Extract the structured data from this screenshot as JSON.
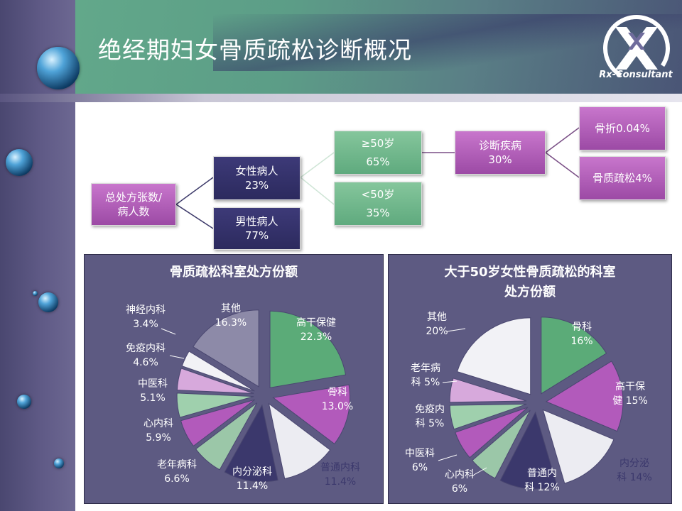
{
  "title": "绝经期妇女骨质疏松诊断概况",
  "logo": {
    "text": "Rx-Consultant"
  },
  "tree": {
    "root": {
      "line1": "总处方张数/",
      "line2": "病人数"
    },
    "female": {
      "label": "女性病人",
      "value": "23%"
    },
    "male": {
      "label": "男性病人",
      "value": "77%"
    },
    "over50": {
      "label": "≥50岁",
      "value": "65%"
    },
    "under50": {
      "label": "<50岁",
      "value": "35%"
    },
    "diagnosed": {
      "label": "诊断疾病",
      "value": "30%"
    },
    "fracture": {
      "label": "骨折0.04%"
    },
    "osteoporosis": {
      "label": "骨质疏松4%"
    }
  },
  "chart_data": [
    {
      "type": "pie",
      "title": "骨质疏松科室处方份额",
      "slices": [
        {
          "name": "高干保健",
          "value": 22.3,
          "color": "#5bab78",
          "labels": [
            "高干保健",
            "22.3%"
          ]
        },
        {
          "name": "骨科",
          "value": 13.0,
          "color": "#b25abb",
          "labels": [
            "骨科",
            "13.0%"
          ]
        },
        {
          "name": "普通内科",
          "value": 11.4,
          "color": "#ececf2",
          "labels": [
            "普通内科",
            "11.4%"
          ]
        },
        {
          "name": "内分泌科",
          "value": 11.4,
          "color": "#3b386c",
          "labels": [
            "内分泌科",
            "11.4%"
          ]
        },
        {
          "name": "老年病科",
          "value": 6.6,
          "color": "#9bc7a8",
          "labels": [
            "老年病科",
            "6.6%"
          ]
        },
        {
          "name": "心内科",
          "value": 5.9,
          "color": "#b25abb",
          "labels": [
            "心内科",
            "5.9%"
          ]
        },
        {
          "name": "中医科",
          "value": 5.1,
          "color": "#9fd0ad",
          "labels": [
            "中医科",
            "5.1%"
          ]
        },
        {
          "name": "免疫内科",
          "value": 4.6,
          "color": "#d7a9dc",
          "labels": [
            "免疫内科",
            "4.6%"
          ]
        },
        {
          "name": "神经内科",
          "value": 3.4,
          "color": "#f2f2f6",
          "labels": [
            "神经内科",
            "3.4%"
          ]
        },
        {
          "name": "其他",
          "value": 16.3,
          "color": "#8d8aa8",
          "labels": [
            "其他",
            "16.3%"
          ]
        }
      ]
    },
    {
      "type": "pie",
      "title": "大于50岁女性骨质疏松的科室处方份额",
      "title_lines": [
        "大于50岁女性骨质疏松的科室",
        "处方份额"
      ],
      "slices": [
        {
          "name": "骨科",
          "value": 16,
          "color": "#5bab78",
          "labels": [
            "骨科",
            "16%"
          ]
        },
        {
          "name": "高干保健",
          "value": 15,
          "color": "#b25abb",
          "labels": [
            "高干保",
            "健 15%"
          ]
        },
        {
          "name": "内分泌科",
          "value": 14,
          "color": "#ececf2",
          "labels": [
            "内分泌",
            "科 14%"
          ]
        },
        {
          "name": "普通内科",
          "value": 12,
          "color": "#3b386c",
          "labels": [
            "普通内",
            "科 12%"
          ]
        },
        {
          "name": "心内科",
          "value": 6,
          "color": "#9bc7a8",
          "labels": [
            "心内科",
            "6%"
          ]
        },
        {
          "name": "中医科",
          "value": 6,
          "color": "#b25abb",
          "labels": [
            "中医科",
            "6%"
          ]
        },
        {
          "name": "免疫内科",
          "value": 5,
          "color": "#9fd0ad",
          "labels": [
            "免疫内",
            "科 5%"
          ]
        },
        {
          "name": "老年病科",
          "value": 5,
          "color": "#d7a9dc",
          "labels": [
            "老年病",
            "科 5%"
          ]
        },
        {
          "name": "其他",
          "value": 20,
          "color": "#f2f2f6",
          "labels": [
            "其他",
            "20%"
          ]
        }
      ]
    }
  ]
}
